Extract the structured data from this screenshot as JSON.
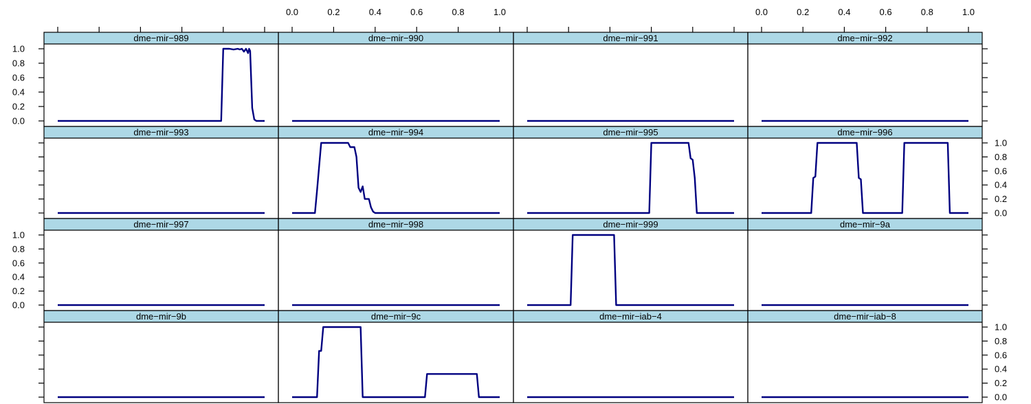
{
  "chart_data": {
    "type": "line",
    "layout": {
      "columns": 4,
      "rows": 4
    },
    "xlim": [
      0,
      1
    ],
    "ylim": [
      0,
      1
    ],
    "x_ticks": [
      "0.0",
      "0.2",
      "0.4",
      "0.6",
      "0.8",
      "1.0"
    ],
    "y_ticks": [
      "0.0",
      "0.2",
      "0.4",
      "0.6",
      "0.8",
      "1.0"
    ],
    "colors": {
      "line": "#000080",
      "strip": "#add8e6",
      "frame": "#000000"
    },
    "panels": [
      {
        "name": "dme−mir−989",
        "x": [
          0,
          0.79,
          0.8,
          0.81,
          0.83,
          0.85,
          0.87,
          0.88,
          0.89,
          0.9,
          0.91,
          0.92,
          0.925,
          0.93,
          0.94,
          0.95,
          0.96,
          1.0
        ],
        "y": [
          0,
          0,
          1.0,
          1.0,
          1.0,
          0.99,
          1.0,
          0.99,
          1.0,
          0.96,
          1.0,
          0.94,
          1.0,
          0.97,
          0.18,
          0.02,
          0,
          0
        ]
      },
      {
        "name": "dme−mir−990",
        "x": [
          0,
          1
        ],
        "y": [
          0,
          0
        ]
      },
      {
        "name": "dme−mir−991",
        "x": [
          0,
          1
        ],
        "y": [
          0,
          0
        ]
      },
      {
        "name": "dme−mir−992",
        "x": [
          0,
          1
        ],
        "y": [
          0,
          0
        ]
      },
      {
        "name": "dme−mir−993",
        "x": [
          0,
          1
        ],
        "y": [
          0,
          0
        ]
      },
      {
        "name": "dme−mir−994",
        "x": [
          0,
          0.11,
          0.12,
          0.14,
          0.27,
          0.28,
          0.3,
          0.31,
          0.32,
          0.33,
          0.34,
          0.35,
          0.36,
          0.37,
          0.38,
          0.39,
          0.4,
          1.0
        ],
        "y": [
          0,
          0,
          0.32,
          1.0,
          1.0,
          0.94,
          0.94,
          0.8,
          0.36,
          0.3,
          0.38,
          0.2,
          0.2,
          0.2,
          0.08,
          0.02,
          0,
          0
        ]
      },
      {
        "name": "dme−mir−995",
        "x": [
          0,
          0.59,
          0.6,
          0.78,
          0.79,
          0.8,
          0.81,
          0.82,
          0.83,
          1.0
        ],
        "y": [
          0,
          0,
          1.0,
          1.0,
          0.78,
          0.76,
          0.5,
          0,
          0,
          0
        ]
      },
      {
        "name": "dme−mir−996",
        "x": [
          0,
          0.24,
          0.25,
          0.26,
          0.27,
          0.46,
          0.47,
          0.48,
          0.49,
          0.5,
          0.68,
          0.69,
          0.9,
          0.91,
          1.0
        ],
        "y": [
          0,
          0,
          0.5,
          0.52,
          1.0,
          1.0,
          0.5,
          0.48,
          0,
          0,
          0,
          1.0,
          1.0,
          0,
          0
        ]
      },
      {
        "name": "dme−mir−997",
        "x": [
          0,
          1
        ],
        "y": [
          0,
          0
        ]
      },
      {
        "name": "dme−mir−998",
        "x": [
          0,
          1
        ],
        "y": [
          0,
          0
        ]
      },
      {
        "name": "dme−mir−999",
        "x": [
          0,
          0.21,
          0.22,
          0.42,
          0.43,
          1.0
        ],
        "y": [
          0,
          0,
          1.0,
          1.0,
          0,
          0
        ]
      },
      {
        "name": "dme−mir−9a",
        "x": [
          0,
          1
        ],
        "y": [
          0,
          0
        ]
      },
      {
        "name": "dme−mir−9b",
        "x": [
          0,
          1
        ],
        "y": [
          0,
          0
        ]
      },
      {
        "name": "dme−mir−9c",
        "x": [
          0,
          0.12,
          0.13,
          0.14,
          0.15,
          0.33,
          0.34,
          0.64,
          0.65,
          0.89,
          0.9,
          1.0
        ],
        "y": [
          0,
          0,
          0.66,
          0.66,
          1.0,
          1.0,
          0,
          0,
          0.33,
          0.33,
          0,
          0
        ]
      },
      {
        "name": "dme−mir−iab−4",
        "x": [
          0,
          1
        ],
        "y": [
          0,
          0
        ]
      },
      {
        "name": "dme−mir−iab−8",
        "x": [
          0,
          1
        ],
        "y": [
          0,
          0
        ]
      }
    ]
  }
}
